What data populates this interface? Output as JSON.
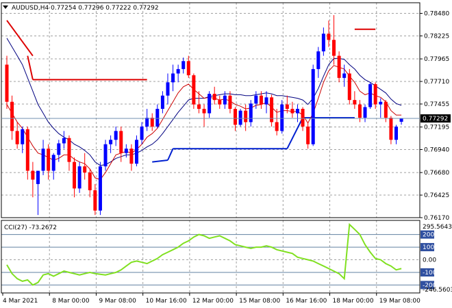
{
  "chart_data": {
    "type": "candlestick",
    "title": "AUDUSD,H4  0.77254 0.77296 0.77222 0.77292",
    "symbol": "AUDUSD",
    "timeframe": "H4",
    "ohlc_header": "0.77254 0.77296 0.77222 0.77292",
    "current_price": "0.77292",
    "ylim": [
      0.7617,
      0.786
    ],
    "y_ticks": [
      "0.78480",
      "0.78225",
      "0.77965",
      "0.77710",
      "0.77455",
      "0.77195",
      "0.76940",
      "0.76680",
      "0.76425",
      "0.76170"
    ],
    "x_ticks": [
      "4 Mar 2021",
      "8 Mar 00:00",
      "9 Mar 08:00",
      "10 Mar 16:00",
      "12 Mar 00:00",
      "15 Mar 08:00",
      "16 Mar 16:00",
      "18 Mar 00:00",
      "19 Mar 08:00"
    ],
    "grid": true,
    "colors": {
      "bull": "#0000ff",
      "bear": "#ff0000",
      "ma_fast": "#cc0000",
      "ma_slow": "#000080",
      "cci": "#80e020",
      "level_red": "#dd0000",
      "level_blue": "#0020d0",
      "grid": "#a0a0a0",
      "price_line": "#7090b0"
    },
    "candles": [
      {
        "o": 0.779,
        "h": 0.78,
        "l": 0.774,
        "c": 0.7748
      },
      {
        "o": 0.7748,
        "h": 0.7755,
        "l": 0.7705,
        "c": 0.7715
      },
      {
        "o": 0.7715,
        "h": 0.7725,
        "l": 0.7695,
        "c": 0.77
      },
      {
        "o": 0.77,
        "h": 0.772,
        "l": 0.769,
        "c": 0.7717
      },
      {
        "o": 0.7717,
        "h": 0.772,
        "l": 0.766,
        "c": 0.767
      },
      {
        "o": 0.767,
        "h": 0.768,
        "l": 0.764,
        "c": 0.766
      },
      {
        "o": 0.7655,
        "h": 0.7668,
        "l": 0.762,
        "c": 0.767
      },
      {
        "o": 0.767,
        "h": 0.7705,
        "l": 0.7665,
        "c": 0.7695
      },
      {
        "o": 0.7695,
        "h": 0.77,
        "l": 0.766,
        "c": 0.767
      },
      {
        "o": 0.767,
        "h": 0.769,
        "l": 0.766,
        "c": 0.7688
      },
      {
        "o": 0.7688,
        "h": 0.7705,
        "l": 0.768,
        "c": 0.7701
      },
      {
        "o": 0.7701,
        "h": 0.7715,
        "l": 0.7695,
        "c": 0.7707
      },
      {
        "o": 0.7707,
        "h": 0.771,
        "l": 0.767,
        "c": 0.768
      },
      {
        "o": 0.768,
        "h": 0.7685,
        "l": 0.764,
        "c": 0.765
      },
      {
        "o": 0.765,
        "h": 0.768,
        "l": 0.7645,
        "c": 0.7675
      },
      {
        "o": 0.7675,
        "h": 0.769,
        "l": 0.766,
        "c": 0.7668
      },
      {
        "o": 0.7668,
        "h": 0.7672,
        "l": 0.764,
        "c": 0.7648
      },
      {
        "o": 0.7648,
        "h": 0.7655,
        "l": 0.762,
        "c": 0.7625
      },
      {
        "o": 0.7625,
        "h": 0.768,
        "l": 0.762,
        "c": 0.7675
      },
      {
        "o": 0.7675,
        "h": 0.7705,
        "l": 0.767,
        "c": 0.77
      },
      {
        "o": 0.77,
        "h": 0.771,
        "l": 0.769,
        "c": 0.7705
      },
      {
        "o": 0.7705,
        "h": 0.772,
        "l": 0.7698,
        "c": 0.7715
      },
      {
        "o": 0.7715,
        "h": 0.772,
        "l": 0.768,
        "c": 0.769
      },
      {
        "o": 0.769,
        "h": 0.77,
        "l": 0.7685,
        "c": 0.7695
      },
      {
        "o": 0.7695,
        "h": 0.77,
        "l": 0.767,
        "c": 0.7678
      },
      {
        "o": 0.7678,
        "h": 0.771,
        "l": 0.7675,
        "c": 0.7705
      },
      {
        "o": 0.7705,
        "h": 0.7725,
        "l": 0.77,
        "c": 0.772
      },
      {
        "o": 0.772,
        "h": 0.774,
        "l": 0.7715,
        "c": 0.773
      },
      {
        "o": 0.773,
        "h": 0.7735,
        "l": 0.7715,
        "c": 0.772
      },
      {
        "o": 0.772,
        "h": 0.7745,
        "l": 0.7718,
        "c": 0.774
      },
      {
        "o": 0.774,
        "h": 0.776,
        "l": 0.7735,
        "c": 0.7755
      },
      {
        "o": 0.7755,
        "h": 0.778,
        "l": 0.7745,
        "c": 0.777
      },
      {
        "o": 0.777,
        "h": 0.779,
        "l": 0.776,
        "c": 0.778
      },
      {
        "o": 0.778,
        "h": 0.779,
        "l": 0.777,
        "c": 0.7785
      },
      {
        "o": 0.7785,
        "h": 0.7798,
        "l": 0.778,
        "c": 0.7794
      },
      {
        "o": 0.7794,
        "h": 0.78,
        "l": 0.7775,
        "c": 0.7778
      },
      {
        "o": 0.7778,
        "h": 0.778,
        "l": 0.774,
        "c": 0.7745
      },
      {
        "o": 0.7745,
        "h": 0.776,
        "l": 0.7735,
        "c": 0.774
      },
      {
        "o": 0.774,
        "h": 0.7745,
        "l": 0.772,
        "c": 0.7735
      },
      {
        "o": 0.7735,
        "h": 0.776,
        "l": 0.773,
        "c": 0.7757
      },
      {
        "o": 0.7757,
        "h": 0.7765,
        "l": 0.7745,
        "c": 0.775
      },
      {
        "o": 0.775,
        "h": 0.7755,
        "l": 0.774,
        "c": 0.7745
      },
      {
        "o": 0.7745,
        "h": 0.776,
        "l": 0.774,
        "c": 0.7755
      },
      {
        "o": 0.7755,
        "h": 0.776,
        "l": 0.7735,
        "c": 0.774
      },
      {
        "o": 0.774,
        "h": 0.7742,
        "l": 0.7715,
        "c": 0.7722
      },
      {
        "o": 0.7722,
        "h": 0.774,
        "l": 0.772,
        "c": 0.7738
      },
      {
        "o": 0.7738,
        "h": 0.7745,
        "l": 0.7715,
        "c": 0.7725
      },
      {
        "o": 0.7725,
        "h": 0.775,
        "l": 0.772,
        "c": 0.7746
      },
      {
        "o": 0.7746,
        "h": 0.776,
        "l": 0.774,
        "c": 0.7755
      },
      {
        "o": 0.7755,
        "h": 0.776,
        "l": 0.774,
        "c": 0.7745
      },
      {
        "o": 0.7745,
        "h": 0.776,
        "l": 0.7735,
        "c": 0.7753
      },
      {
        "o": 0.7753,
        "h": 0.7756,
        "l": 0.772,
        "c": 0.7725
      },
      {
        "o": 0.7725,
        "h": 0.774,
        "l": 0.771,
        "c": 0.7715
      },
      {
        "o": 0.7715,
        "h": 0.775,
        "l": 0.7712,
        "c": 0.7745
      },
      {
        "o": 0.7745,
        "h": 0.7755,
        "l": 0.7735,
        "c": 0.774
      },
      {
        "o": 0.774,
        "h": 0.7748,
        "l": 0.773,
        "c": 0.7735
      },
      {
        "o": 0.7735,
        "h": 0.7745,
        "l": 0.7725,
        "c": 0.774
      },
      {
        "o": 0.774,
        "h": 0.7742,
        "l": 0.7715,
        "c": 0.772
      },
      {
        "o": 0.772,
        "h": 0.7725,
        "l": 0.7695,
        "c": 0.77
      },
      {
        "o": 0.77,
        "h": 0.779,
        "l": 0.7698,
        "c": 0.7785
      },
      {
        "o": 0.7785,
        "h": 0.781,
        "l": 0.7775,
        "c": 0.7805
      },
      {
        "o": 0.7805,
        "h": 0.7832,
        "l": 0.78,
        "c": 0.7825
      },
      {
        "o": 0.7825,
        "h": 0.784,
        "l": 0.781,
        "c": 0.7818
      },
      {
        "o": 0.7818,
        "h": 0.7846,
        "l": 0.779,
        "c": 0.78
      },
      {
        "o": 0.78,
        "h": 0.7805,
        "l": 0.777,
        "c": 0.7775
      },
      {
        "o": 0.7775,
        "h": 0.779,
        "l": 0.7765,
        "c": 0.778
      },
      {
        "o": 0.778,
        "h": 0.7785,
        "l": 0.7745,
        "c": 0.775
      },
      {
        "o": 0.775,
        "h": 0.776,
        "l": 0.774,
        "c": 0.7745
      },
      {
        "o": 0.7745,
        "h": 0.775,
        "l": 0.7725,
        "c": 0.773
      },
      {
        "o": 0.773,
        "h": 0.7745,
        "l": 0.7725,
        "c": 0.7742
      },
      {
        "o": 0.7742,
        "h": 0.777,
        "l": 0.774,
        "c": 0.7768
      },
      {
        "o": 0.7768,
        "h": 0.777,
        "l": 0.774,
        "c": 0.7745
      },
      {
        "o": 0.7745,
        "h": 0.7752,
        "l": 0.773,
        "c": 0.7748
      },
      {
        "o": 0.7748,
        "h": 0.775,
        "l": 0.7725,
        "c": 0.773
      },
      {
        "o": 0.773,
        "h": 0.7732,
        "l": 0.77,
        "c": 0.7705
      },
      {
        "o": 0.7705,
        "h": 0.7722,
        "l": 0.77,
        "c": 0.772
      },
      {
        "o": 0.77254,
        "h": 0.77296,
        "l": 0.77222,
        "c": 0.77292
      }
    ],
    "ma_fast": [
      0.7745,
      0.7735,
      0.7725,
      0.7718,
      0.7708,
      0.7698,
      0.769,
      0.7688,
      0.7685,
      0.7682,
      0.7684,
      0.7688,
      0.7688,
      0.7683,
      0.768,
      0.7678,
      0.7672,
      0.7662,
      0.766,
      0.7668,
      0.7678,
      0.7688,
      0.769,
      0.7692,
      0.769,
      0.7694,
      0.77,
      0.7708,
      0.7712,
      0.7718,
      0.7728,
      0.7738,
      0.7748,
      0.7758,
      0.7765,
      0.7768,
      0.7762,
      0.7757,
      0.7752,
      0.7753,
      0.7752,
      0.775,
      0.7751,
      0.7749,
      0.7745,
      0.7743,
      0.774,
      0.7741,
      0.7744,
      0.7745,
      0.7747,
      0.7742,
      0.7736,
      0.7738,
      0.7738,
      0.7737,
      0.7737,
      0.7733,
      0.7724,
      0.7735,
      0.7752,
      0.777,
      0.7783,
      0.7789,
      0.7787,
      0.7785,
      0.7777,
      0.777,
      0.776,
      0.7756,
      0.7758,
      0.7755,
      0.7753,
      0.7748,
      0.7738,
      0.7733,
      0.7733
    ],
    "ma_slow": [
      0.782,
      0.781,
      0.78,
      0.779,
      0.7775,
      0.776,
      0.7745,
      0.7735,
      0.7725,
      0.7718,
      0.7712,
      0.7708,
      0.7705,
      0.77,
      0.7697,
      0.7693,
      0.7688,
      0.768,
      0.7676,
      0.7677,
      0.768,
      0.7684,
      0.7686,
      0.7688,
      0.7688,
      0.769,
      0.7693,
      0.7697,
      0.77,
      0.7705,
      0.7712,
      0.772,
      0.7728,
      0.7736,
      0.7743,
      0.775,
      0.7752,
      0.7752,
      0.7752,
      0.7754,
      0.7755,
      0.7756,
      0.7757,
      0.7757,
      0.7756,
      0.7756,
      0.7755,
      0.7755,
      0.7756,
      0.7757,
      0.7758,
      0.7757,
      0.7755,
      0.7755,
      0.7754,
      0.7753,
      0.7752,
      0.775,
      0.7745,
      0.7752,
      0.7763,
      0.7777,
      0.779,
      0.7797,
      0.7797,
      0.7796,
      0.779,
      0.7785,
      0.7778,
      0.7773,
      0.777,
      0.7766,
      0.7762,
      0.7758,
      0.7751,
      0.7746,
      0.7744
    ],
    "level_red": {
      "segments": [
        {
          "x": [
            0,
            5
          ],
          "y": [
            0.784,
            0.78
          ]
        },
        {
          "x": [
            5,
            27
          ],
          "y": [
            0.7773,
            0.7773
          ]
        },
        {
          "x": [
            67,
            71
          ],
          "y": [
            0.783,
            0.783
          ]
        }
      ],
      "connector": [
        {
          "x": [
            4,
            5
          ],
          "y": [
            0.78,
            0.7773
          ]
        }
      ]
    },
    "level_blue": {
      "segments": [
        {
          "x": [
            28,
            31
          ],
          "y": [
            0.768,
            0.7682
          ]
        },
        {
          "x": [
            32,
            54
          ],
          "y": [
            0.7695,
            0.7695
          ]
        },
        {
          "x": [
            57,
            67
          ],
          "y": [
            0.773,
            0.773
          ]
        }
      ],
      "connector": [
        {
          "x": [
            31,
            32
          ],
          "y": [
            0.7682,
            0.7695
          ]
        },
        {
          "x": [
            54,
            57
          ],
          "y": [
            0.7695,
            0.773
          ]
        }
      ]
    },
    "cci": {
      "label": "CCI(27) -73.2672",
      "ylim": [
        -246.5603,
        295.5643
      ],
      "max_label": "295.5643",
      "min_label": "-246.5603",
      "levels": [
        "200",
        "100",
        "0.00",
        "-100",
        "-200"
      ],
      "level_values": [
        200,
        100,
        0,
        -100,
        -200
      ],
      "values": [
        -40,
        -110,
        -150,
        -170,
        -160,
        -200,
        -180,
        -120,
        -110,
        -130,
        -110,
        -90,
        -100,
        -110,
        -120,
        -110,
        -100,
        -110,
        -115,
        -120,
        -110,
        -100,
        -80,
        -50,
        -20,
        -10,
        -20,
        -30,
        -10,
        10,
        40,
        60,
        80,
        100,
        130,
        150,
        180,
        200,
        190,
        170,
        180,
        190,
        170,
        150,
        120,
        110,
        100,
        90,
        100,
        100,
        110,
        100,
        80,
        70,
        60,
        50,
        20,
        10,
        0,
        -10,
        -30,
        -50,
        -70,
        -90,
        -110,
        -150,
        280,
        240,
        200,
        120,
        60,
        10,
        0,
        -30,
        -50,
        -80,
        -70
      ]
    }
  }
}
